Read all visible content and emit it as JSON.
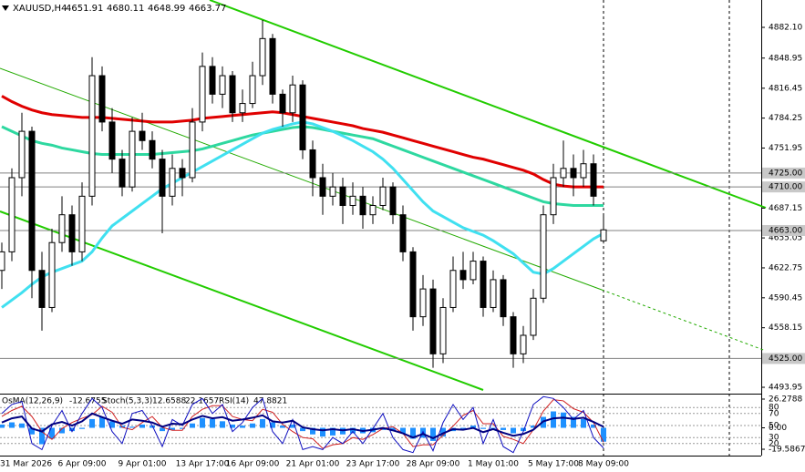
{
  "chart_data": {
    "type": "candlestick",
    "symbol": "XAUUSD,H4",
    "categories": [
      "31 Mar 2026",
      null,
      null,
      null,
      null,
      null,
      null,
      null,
      "6 Apr 09:00",
      null,
      null,
      null,
      null,
      null,
      "9 Apr 01:00",
      null,
      null,
      null,
      null,
      null,
      "13 Apr 17:00",
      null,
      null,
      null,
      null,
      "16 Apr 09:00",
      null,
      null,
      null,
      null,
      null,
      "21 Apr 01:00",
      null,
      null,
      null,
      null,
      null,
      "23 Apr 17:00",
      null,
      null,
      null,
      null,
      null,
      "28 Apr 09:00",
      null,
      null,
      null,
      null,
      null,
      "1 May 01:00",
      null,
      null,
      null,
      null,
      null,
      "5 May 17:00",
      null,
      null,
      null,
      null,
      "8 May 09:00"
    ],
    "open": [
      4620,
      4640,
      4720,
      4770,
      4620,
      4580,
      4650,
      4680,
      4640,
      4700,
      4830,
      4780,
      4740,
      4710,
      4770,
      4760,
      4740,
      4700,
      4730,
      4720,
      4780,
      4840,
      4810,
      4830,
      4790,
      4800,
      4830,
      4870,
      4810,
      4790,
      4820,
      4750,
      4720,
      4700,
      4710,
      4690,
      4700,
      4680,
      4690,
      4710,
      4680,
      4640,
      4570,
      4600,
      4530,
      4580,
      4620,
      4610,
      4630,
      4580,
      4610,
      4570,
      4530,
      4550,
      4590,
      4680,
      4720,
      4730,
      4720,
      4735,
      4651.91
    ],
    "high": [
      4650,
      4730,
      4790,
      4775,
      4640,
      4665,
      4700,
      4690,
      4715,
      4850,
      4840,
      4795,
      4750,
      4785,
      4790,
      4770,
      4750,
      4745,
      4740,
      4795,
      4855,
      4850,
      4840,
      4835,
      4815,
      4845,
      4890,
      4875,
      4815,
      4830,
      4825,
      4760,
      4735,
      4725,
      4720,
      4715,
      4710,
      4700,
      4720,
      4715,
      4690,
      4645,
      4615,
      4610,
      4590,
      4635,
      4640,
      4640,
      4635,
      4620,
      4615,
      4575,
      4560,
      4600,
      4690,
      4735,
      4760,
      4745,
      4750,
      4745,
      4680.11
    ],
    "low": [
      4600,
      4630,
      4700,
      4590,
      4555,
      4575,
      4640,
      4625,
      4630,
      4690,
      4770,
      4725,
      4700,
      4705,
      4750,
      4730,
      4660,
      4690,
      4700,
      4715,
      4770,
      4800,
      4795,
      4780,
      4780,
      4795,
      4820,
      4800,
      4775,
      4780,
      4740,
      4700,
      4680,
      4690,
      4670,
      4680,
      4665,
      4670,
      4685,
      4670,
      4630,
      4555,
      4560,
      4515,
      4520,
      4575,
      4600,
      4605,
      4570,
      4575,
      4560,
      4515,
      4520,
      4545,
      4585,
      4670,
      4710,
      4700,
      4710,
      4690,
      4648.99
    ],
    "close": [
      4640,
      4720,
      4770,
      4620,
      4580,
      4650,
      4680,
      4640,
      4700,
      4830,
      4780,
      4740,
      4710,
      4770,
      4760,
      4740,
      4700,
      4730,
      4720,
      4780,
      4840,
      4810,
      4830,
      4790,
      4800,
      4830,
      4870,
      4810,
      4790,
      4820,
      4750,
      4720,
      4700,
      4710,
      4690,
      4700,
      4680,
      4690,
      4710,
      4680,
      4640,
      4570,
      4600,
      4530,
      4580,
      4620,
      4610,
      4630,
      4580,
      4610,
      4570,
      4530,
      4550,
      4590,
      4680,
      4720,
      4730,
      4720,
      4735,
      4700,
      4663.77
    ],
    "lines": [
      {
        "color": "#e00000",
        "values": [
          4808,
          4802,
          4797,
          4793,
          4790,
          4788,
          4787,
          4786,
          4785,
          4785,
          4785,
          4784,
          4783,
          4782,
          4781,
          4780,
          4780,
          4780,
          4781,
          4782,
          4784,
          4785,
          4786,
          4787,
          4788,
          4789,
          4790,
          4791,
          4790,
          4788,
          4786,
          4784,
          4782,
          4780,
          4778,
          4776,
          4773,
          4771,
          4769,
          4766,
          4763,
          4760,
          4757,
          4754,
          4751,
          4748,
          4745,
          4742,
          4740,
          4737,
          4734,
          4731,
          4728,
          4724,
          4718,
          4713,
          4711,
          4710,
          4710,
          4710,
          4710
        ]
      },
      {
        "color": "#2ed8a0",
        "values": [
          4775,
          4770,
          4765,
          4760,
          4757,
          4755,
          4752,
          4750,
          4748,
          4746,
          4745,
          4745,
          4745,
          4745,
          4745,
          4745,
          4746,
          4747,
          4748,
          4749,
          4751,
          4754,
          4757,
          4760,
          4763,
          4766,
          4768,
          4770,
          4772,
          4774,
          4775,
          4774,
          4772,
          4770,
          4768,
          4766,
          4764,
          4762,
          4758,
          4754,
          4750,
          4746,
          4742,
          4738,
          4734,
          4730,
          4726,
          4722,
          4718,
          4714,
          4710,
          4706,
          4702,
          4698,
          4694,
          4692,
          4691,
          4690,
          4690,
          4690,
          4690
        ]
      },
      {
        "color": "#40e0f0",
        "values": [
          4580,
          4588,
          4596,
          4605,
          4613,
          4618,
          4622,
          4626,
          4630,
          4640,
          4655,
          4668,
          4676,
          4684,
          4692,
          4700,
          4708,
          4714,
          4720,
          4726,
          4732,
          4738,
          4744,
          4750,
          4756,
          4762,
          4768,
          4772,
          4775,
          4778,
          4780,
          4778,
          4774,
          4770,
          4765,
          4760,
          4754,
          4748,
          4740,
          4730,
          4718,
          4706,
          4694,
          4684,
          4678,
          4672,
          4666,
          4662,
          4658,
          4652,
          4645,
          4638,
          4628,
          4618,
          4616,
          4622,
          4630,
          4638,
          4646,
          4654,
          4660
        ]
      }
    ],
    "levels": [
      {
        "value": 4725,
        "label": "4725.00"
      },
      {
        "value": 4710,
        "label": "4710.00"
      },
      {
        "value": 4663,
        "label": "4663.00"
      },
      {
        "value": 4525,
        "label": "4525.00"
      }
    ],
    "ylim": [
      4487.1,
      4911.6
    ],
    "yticks": [
      {
        "value": 4882.1,
        "label": "4882.10"
      },
      4848.95,
      4816.45,
      4784.25,
      4751.95,
      4687.15,
      4655.05,
      4622.75,
      4590.45,
      4558.15,
      4493.95
    ],
    "indicators": {
      "osma": {
        "label": "OsMA(12,26,9)",
        "color": "#1e90ff",
        "values": [
          3,
          5,
          4,
          -6,
          -15,
          -10,
          -5,
          -3,
          -1,
          8,
          10,
          6,
          2,
          1,
          3,
          2,
          -3,
          -2,
          -1,
          4,
          9,
          8,
          6,
          3,
          2,
          4,
          8,
          5,
          2,
          3,
          -3,
          -6,
          -8,
          -7,
          -6,
          -5,
          -5,
          -4,
          -2,
          -3,
          -5,
          -10,
          -9,
          -12,
          -8,
          -3,
          0,
          2,
          -1,
          0,
          -2,
          -5,
          -3,
          2,
          10,
          15,
          14,
          10,
          8,
          3,
          -12.6755
        ],
        "ylim": [
          -25.4,
          29.6
        ],
        "yticks": [
          26.2788,
          {
            "value": 0,
            "label": "0.00"
          },
          -19.5867
        ]
      },
      "stoch": {
        "label": "Stoch(5,3,3)",
        "ylim": [
          0,
          100
        ],
        "yticks": [
          80,
          70,
          50,
          30,
          20
        ],
        "main": {
          "color": "#1010c0",
          "values": [
            70,
            85,
            90,
            20,
            10,
            50,
            75,
            40,
            70,
            95,
            80,
            40,
            20,
            70,
            75,
            50,
            15,
            60,
            50,
            85,
            95,
            70,
            85,
            40,
            55,
            80,
            95,
            40,
            20,
            60,
            10,
            15,
            10,
            30,
            20,
            40,
            20,
            45,
            70,
            30,
            10,
            5,
            40,
            8,
            55,
            85,
            60,
            80,
            20,
            60,
            15,
            5,
            40,
            85,
            98,
            95,
            80,
            60,
            75,
            30,
            12.6588
          ]
        },
        "signal": {
          "color": "#d02020",
          "values": [
            65,
            75,
            82,
            65,
            40,
            27,
            45,
            55,
            62,
            68,
            82,
            72,
            47,
            43,
            55,
            65,
            47,
            42,
            42,
            65,
            77,
            83,
            83,
            65,
            60,
            58,
            77,
            72,
            52,
            40,
            30,
            28,
            12,
            18,
            20,
            30,
            27,
            35,
            45,
            48,
            37,
            15,
            18,
            18,
            34,
            49,
            67,
            75,
            53,
            53,
            32,
            27,
            20,
            43,
            74,
            93,
            91,
            78,
            72,
            55,
            22.1657
          ]
        }
      },
      "rsi": {
        "label": "RSI(14)",
        "color": "#000080",
        "values": [
          55,
          62,
          65,
          45,
          40,
          52,
          56,
          50,
          57,
          70,
          64,
          58,
          53,
          60,
          58,
          55,
          48,
          53,
          52,
          60,
          66,
          62,
          64,
          58,
          60,
          63,
          67,
          57,
          55,
          58,
          47,
          44,
          42,
          44,
          42,
          44,
          41,
          43,
          46,
          42,
          37,
          30,
          36,
          29,
          37,
          44,
          43,
          46,
          39,
          44,
          38,
          33,
          36,
          43,
          57,
          62,
          63,
          61,
          63,
          56,
          47.8821
        ]
      }
    }
  }
}
